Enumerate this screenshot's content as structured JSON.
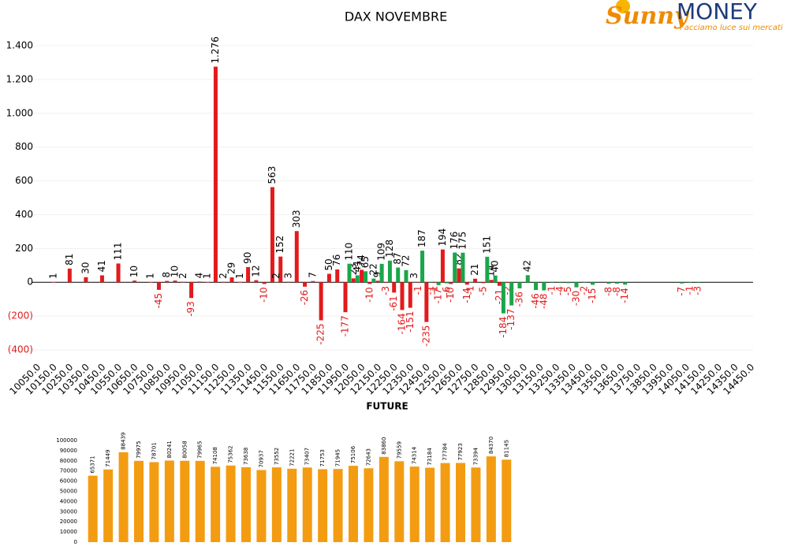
{
  "logo": {
    "brand": "Sunny",
    "name": "MONEY",
    "tagline": "Facciamo luce sui mercati"
  },
  "chart_data": [
    {
      "type": "bar",
      "title": "DAX NOVEMBRE",
      "categories": [
        "10050.0",
        null,
        "10150.0",
        null,
        "10250.0",
        null,
        "10350.0",
        null,
        "10450.0",
        null,
        "10550.0",
        null,
        "10650.0",
        null,
        "10750.0",
        null,
        "10850.0",
        null,
        "10950.0",
        null,
        "11050.0",
        null,
        "11150.0",
        null,
        "11250.0",
        null,
        "11350.0",
        null,
        "11450.0",
        null,
        "11550.0",
        null,
        "11650.0",
        null,
        "11750.0",
        null,
        "11850.0",
        null,
        "11950.0",
        null,
        "12050.0",
        null,
        "12150.0",
        null,
        "12250.0",
        null,
        "12350.0",
        null,
        "12450.0",
        null,
        "12550.0",
        null,
        "12650.0",
        null,
        "12750.0",
        null,
        "12850.0",
        null,
        "12950.0",
        null,
        "13050.0",
        null,
        "13150.0",
        null,
        "13250.0",
        null,
        "13350.0",
        null,
        "13450.0",
        null,
        "13550.0",
        null,
        "13650.0",
        null,
        "13750.0",
        null,
        "13850.0",
        null,
        "13950.0",
        null,
        "14050.0",
        null,
        "14150.0",
        null,
        "14250.0",
        null,
        "14350.0",
        null,
        "14450.0"
      ],
      "series": [
        {
          "color": "#e31a1c",
          "values": [
            null,
            null,
            1,
            null,
            81,
            null,
            30,
            null,
            41,
            null,
            111,
            null,
            10,
            null,
            1,
            -45,
            8,
            10,
            2,
            -93,
            4,
            1,
            1276,
            2,
            29,
            1,
            90,
            12,
            -10,
            563,
            152,
            3,
            303,
            -26,
            7,
            -225,
            50,
            76,
            -177,
            23,
            74,
            -10,
            9,
            -3,
            -61,
            -164,
            -151,
            -1,
            -235,
            -1,
            194,
            -10,
            82,
            -14,
            21,
            -5,
            14,
            -21,
            -2,
            null,
            null,
            null,
            null,
            null,
            null,
            null,
            null,
            null,
            null,
            null,
            null,
            null,
            null,
            null,
            null,
            null,
            null,
            null,
            null,
            null,
            null,
            null,
            null,
            null,
            null,
            null,
            null,
            null,
            null
          ],
          "value_labels": [
            null,
            null,
            null,
            null,
            null,
            null,
            null,
            null,
            null,
            null,
            null,
            null,
            null,
            null,
            null,
            null,
            null,
            null,
            null,
            null,
            null,
            null,
            "1.276",
            null,
            null,
            null,
            null,
            null,
            null,
            null,
            null,
            null,
            null,
            null,
            null,
            null,
            null,
            null,
            null,
            null,
            null,
            null,
            null,
            null,
            null,
            null,
            null,
            null,
            null,
            null,
            null,
            null,
            null,
            null,
            null,
            null,
            null,
            null,
            null,
            null,
            null,
            null,
            null,
            null,
            null,
            null,
            null,
            null,
            null,
            null,
            null,
            null,
            null,
            null,
            null,
            null,
            null,
            null,
            null,
            null,
            null,
            null,
            null,
            null,
            null,
            null,
            null,
            null,
            null
          ]
        },
        {
          "color": "#1aa64a",
          "values": [
            null,
            null,
            null,
            null,
            null,
            null,
            null,
            null,
            null,
            null,
            null,
            null,
            null,
            null,
            null,
            null,
            null,
            null,
            null,
            null,
            null,
            null,
            null,
            null,
            null,
            null,
            null,
            null,
            null,
            2,
            null,
            null,
            null,
            null,
            null,
            null,
            null,
            null,
            110,
            41,
            65,
            22,
            109,
            128,
            87,
            72,
            3,
            187,
            -1,
            -17,
            -6,
            176,
            175,
            -1,
            null,
            151,
            40,
            -184,
            -137,
            -36,
            42,
            -46,
            -48,
            -1,
            -4,
            -5,
            -30,
            -2,
            -15,
            null,
            -8,
            -8,
            -14,
            null,
            null,
            null,
            null,
            null,
            null,
            -7,
            -1,
            -3,
            null,
            null,
            null,
            null,
            null,
            null,
            null
          ]
        }
      ],
      "ylim": [
        -400,
        1400
      ],
      "yticks": [
        {
          "value": -400,
          "label": "(400)"
        },
        {
          "value": -200,
          "label": "(200)"
        },
        0,
        200,
        400,
        600,
        800,
        {
          "value": 1000,
          "label": "1.000"
        },
        {
          "value": 1200,
          "label": "1.200"
        },
        {
          "value": 1400,
          "label": "1.400"
        }
      ],
      "grid": true
    },
    {
      "type": "bar",
      "title": "FUTURE",
      "color": "#f39c12",
      "values": [
        65371,
        71449,
        88439,
        79975,
        78701,
        80241,
        80058,
        79965,
        74108,
        75362,
        73638,
        70937,
        73552,
        72221,
        73407,
        71753,
        71945,
        75106,
        72643,
        83860,
        79559,
        74314,
        73184,
        77784,
        77923,
        73394,
        84370,
        81145
      ],
      "ylim": [
        0,
        100000
      ],
      "yticks": [
        0,
        10000,
        20000,
        30000,
        40000,
        50000,
        60000,
        70000,
        80000,
        90000,
        100000
      ],
      "grid": false
    }
  ]
}
